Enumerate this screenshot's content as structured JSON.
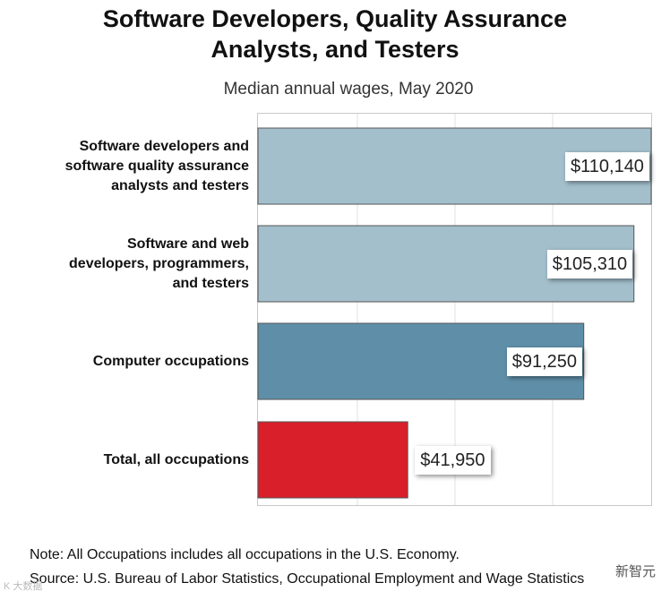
{
  "chart_data": {
    "type": "bar",
    "orientation": "horizontal",
    "title": "Software Developers, Quality Assurance Analysts, and Testers",
    "subtitle": "Median annual wages, May 2020",
    "categories": [
      "Software developers and software quality assurance analysts and testers",
      "Software and web developers, programmers, and testers",
      "Computer occupations",
      "Total, all occupations"
    ],
    "category_lines": [
      [
        "Software developers and",
        "software quality assurance",
        "analysts and testers"
      ],
      [
        "Software and web",
        "developers, programmers,",
        "and testers"
      ],
      [
        "Computer occupations"
      ],
      [
        "Total, all occupations"
      ]
    ],
    "values": [
      110140,
      105310,
      91250,
      41950
    ],
    "value_labels": [
      "$110,140",
      "$105,310",
      "$91,250",
      "$41,950"
    ],
    "bar_colors": [
      "#a3bfcc",
      "#a3bfcc",
      "#5f8fa8",
      "#d81f2a"
    ],
    "xlim": [
      0,
      110140
    ],
    "grid": true,
    "legend": "none"
  },
  "notes": {
    "note": "Note: All Occupations includes all occupations in the U.S. Economy.",
    "source": "Source: U.S. Bureau of Labor Statistics, Occupational Employment and Wage Statistics"
  },
  "watermarks": {
    "right": "新智元",
    "left": "K 大数据"
  }
}
